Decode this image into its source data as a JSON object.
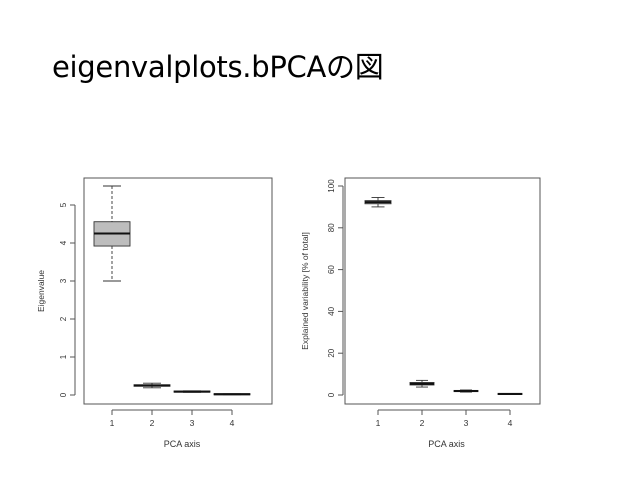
{
  "slide": {
    "title": "eigenvalplots.bPCAの図"
  },
  "colors": {
    "box_fill": "#bdbdbd",
    "stroke": "#333333",
    "frame": "#555555"
  },
  "chart_data": [
    {
      "type": "boxplot",
      "title": "",
      "xlabel": "PCA axis",
      "ylabel": "Eigenvalue",
      "categories": [
        "1",
        "2",
        "3",
        "4"
      ],
      "ylim": [
        0,
        5.5
      ],
      "yticks": [
        "0",
        "1",
        "2",
        "3",
        "4",
        "5"
      ],
      "grid": false,
      "boxes": [
        {
          "category": "1",
          "min": 3.0,
          "q1": 3.92,
          "median": 4.25,
          "q3": 4.56,
          "max": 5.5
        },
        {
          "category": "2",
          "min": 0.19,
          "q1": 0.23,
          "median": 0.25,
          "q3": 0.27,
          "max": 0.31
        },
        {
          "category": "3",
          "min": 0.07,
          "q1": 0.08,
          "median": 0.09,
          "q3": 0.1,
          "max": 0.11
        },
        {
          "category": "4",
          "min": 0.01,
          "q1": 0.015,
          "median": 0.02,
          "q3": 0.025,
          "max": 0.03
        }
      ]
    },
    {
      "type": "boxplot",
      "title": "",
      "xlabel": "PCA axis",
      "ylabel": "Explained variability [% of total]",
      "categories": [
        "1",
        "2",
        "3",
        "4"
      ],
      "ylim": [
        0,
        100
      ],
      "yticks": [
        "0",
        "20",
        "40",
        "60",
        "80",
        "100"
      ],
      "grid": false,
      "boxes": [
        {
          "category": "1",
          "min": 90,
          "q1": 91.5,
          "median": 92.3,
          "q3": 93,
          "max": 94.5
        },
        {
          "category": "2",
          "min": 3.8,
          "q1": 4.8,
          "median": 5.3,
          "q3": 6,
          "max": 7
        },
        {
          "category": "3",
          "min": 1.4,
          "q1": 1.7,
          "median": 1.9,
          "q3": 2.1,
          "max": 2.4
        },
        {
          "category": "4",
          "min": 0.3,
          "q1": 0.4,
          "median": 0.5,
          "q3": 0.6,
          "max": 0.7
        }
      ]
    }
  ]
}
